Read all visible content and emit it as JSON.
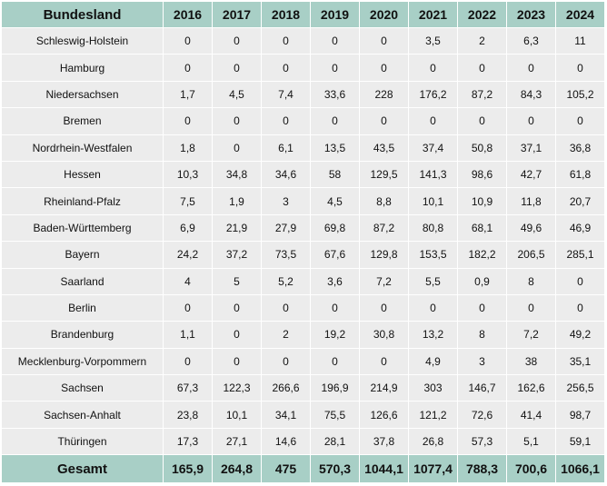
{
  "chart_data": {
    "type": "table",
    "header_label": "Bundesland",
    "years": [
      "2016",
      "2017",
      "2018",
      "2019",
      "2020",
      "2021",
      "2022",
      "2023",
      "2024"
    ],
    "rows": [
      {
        "state": "Schleswig-Holstein",
        "values": [
          "0",
          "0",
          "0",
          "0",
          "0",
          "3,5",
          "2",
          "6,3",
          "11"
        ]
      },
      {
        "state": "Hamburg",
        "values": [
          "0",
          "0",
          "0",
          "0",
          "0",
          "0",
          "0",
          "0",
          "0"
        ]
      },
      {
        "state": "Niedersachsen",
        "values": [
          "1,7",
          "4,5",
          "7,4",
          "33,6",
          "228",
          "176,2",
          "87,2",
          "84,3",
          "105,2"
        ]
      },
      {
        "state": "Bremen",
        "values": [
          "0",
          "0",
          "0",
          "0",
          "0",
          "0",
          "0",
          "0",
          "0"
        ]
      },
      {
        "state": "Nordrhein-Westfalen",
        "values": [
          "1,8",
          "0",
          "6,1",
          "13,5",
          "43,5",
          "37,4",
          "50,8",
          "37,1",
          "36,8"
        ]
      },
      {
        "state": "Hessen",
        "values": [
          "10,3",
          "34,8",
          "34,6",
          "58",
          "129,5",
          "141,3",
          "98,6",
          "42,7",
          "61,8"
        ]
      },
      {
        "state": "Rheinland-Pfalz",
        "values": [
          "7,5",
          "1,9",
          "3",
          "4,5",
          "8,8",
          "10,1",
          "10,9",
          "11,8",
          "20,7"
        ]
      },
      {
        "state": "Baden-Württemberg",
        "values": [
          "6,9",
          "21,9",
          "27,9",
          "69,8",
          "87,2",
          "80,8",
          "68,1",
          "49,6",
          "46,9"
        ]
      },
      {
        "state": "Bayern",
        "values": [
          "24,2",
          "37,2",
          "73,5",
          "67,6",
          "129,8",
          "153,5",
          "182,2",
          "206,5",
          "285,1"
        ]
      },
      {
        "state": "Saarland",
        "values": [
          "4",
          "5",
          "5,2",
          "3,6",
          "7,2",
          "5,5",
          "0,9",
          "8",
          "0"
        ]
      },
      {
        "state": "Berlin",
        "values": [
          "0",
          "0",
          "0",
          "0",
          "0",
          "0",
          "0",
          "0",
          "0"
        ]
      },
      {
        "state": "Brandenburg",
        "values": [
          "1,1",
          "0",
          "2",
          "19,2",
          "30,8",
          "13,2",
          "8",
          "7,2",
          "49,2"
        ]
      },
      {
        "state": "Mecklenburg-Vorpommern",
        "values": [
          "0",
          "0",
          "0",
          "0",
          "0",
          "4,9",
          "3",
          "38",
          "35,1"
        ]
      },
      {
        "state": "Sachsen",
        "values": [
          "67,3",
          "122,3",
          "266,6",
          "196,9",
          "214,9",
          "303",
          "146,7",
          "162,6",
          "256,5"
        ]
      },
      {
        "state": "Sachsen-Anhalt",
        "values": [
          "23,8",
          "10,1",
          "34,1",
          "75,5",
          "126,6",
          "121,2",
          "72,6",
          "41,4",
          "98,7"
        ]
      },
      {
        "state": "Thüringen",
        "values": [
          "17,3",
          "27,1",
          "14,6",
          "28,1",
          "37,8",
          "26,8",
          "57,3",
          "5,1",
          "59,1"
        ]
      }
    ],
    "total_label": "Gesamt",
    "totals": [
      "165,9",
      "264,8",
      "475",
      "570,3",
      "1044,1",
      "1077,4",
      "788,3",
      "700,6",
      "1066,1"
    ]
  }
}
